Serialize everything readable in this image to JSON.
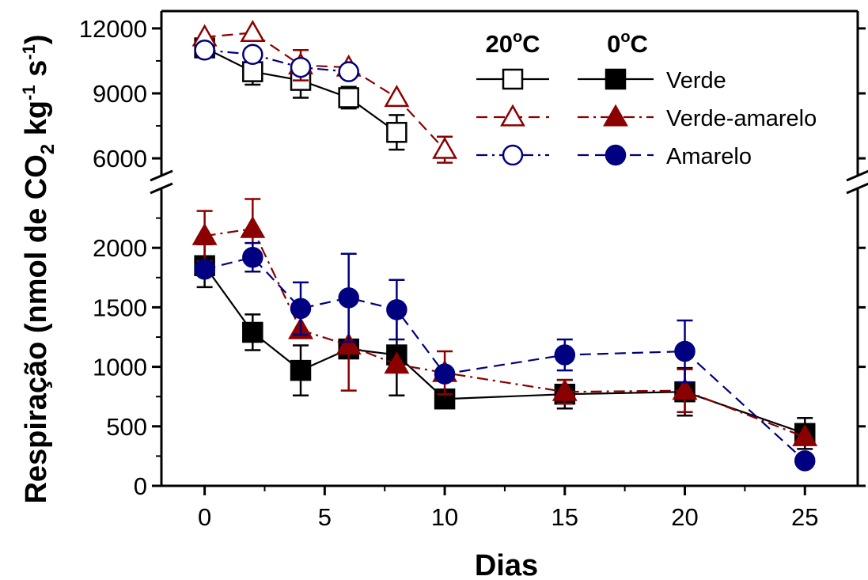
{
  "chart_data": {
    "type": "line",
    "title": "",
    "xlabel": "Dias",
    "ylabel": {
      "main": "Respiração (nmol de CO",
      "sub2": "2",
      "kg": " kg",
      "exp1": "-1",
      "s": " s",
      "exp2": "-1",
      "close": ")"
    },
    "x_ticks": [
      0,
      5,
      10,
      15,
      20,
      25
    ],
    "xlim": [
      -1.8,
      27.2
    ],
    "y_axis_broken": true,
    "y_lower": {
      "range": [
        0,
        2500
      ],
      "ticks": [
        0,
        500,
        1000,
        1500,
        2000
      ]
    },
    "y_upper": {
      "range": [
        5200,
        12800
      ],
      "ticks": [
        6000,
        9000,
        12000
      ]
    },
    "legend": {
      "position": "top-right",
      "header_20": "20°C",
      "header_0": "0°C",
      "header_20_num": "20",
      "header_0_num": "0",
      "header_deg": "o",
      "header_c": "C",
      "rows": [
        "Verde",
        "Verde-amarelo",
        "Amarelo"
      ]
    },
    "colors": {
      "verde": "#000000",
      "verde_amarelo": "#8b0000",
      "amarelo": "#000080"
    },
    "series": [
      {
        "name": "Verde",
        "temperature": "20°C",
        "marker": "square-open",
        "color": "#000000",
        "dash": "solid",
        "x": [
          0,
          2,
          4,
          6,
          8
        ],
        "y": [
          11100,
          10000,
          9600,
          8800,
          7200
        ],
        "err": [
          0,
          600,
          800,
          500,
          800
        ]
      },
      {
        "name": "Verde-amarelo",
        "temperature": "20°C",
        "marker": "triangle-open",
        "color": "#8b0000",
        "dash": "dash",
        "x": [
          0,
          2,
          4,
          6,
          8,
          10
        ],
        "y": [
          11600,
          11800,
          10300,
          10200,
          8800,
          6400
        ],
        "err": [
          0,
          0,
          700,
          0,
          0,
          600
        ]
      },
      {
        "name": "Amarelo",
        "temperature": "20°C",
        "marker": "circle-open",
        "color": "#000080",
        "dash": "dashdot",
        "x": [
          0,
          2,
          4,
          6
        ],
        "y": [
          11000,
          10800,
          10200,
          10000
        ],
        "err": [
          0,
          0,
          0,
          0
        ]
      },
      {
        "name": "Verde",
        "temperature": "0°C",
        "marker": "square-filled",
        "color": "#000000",
        "dash": "solid",
        "x": [
          0,
          2,
          4,
          6,
          8,
          10,
          15,
          20,
          25
        ],
        "y": [
          1850,
          1290,
          970,
          1150,
          1100,
          730,
          770,
          790,
          440
        ],
        "err": [
          180,
          150,
          210,
          0,
          340,
          0,
          120,
          200,
          130
        ]
      },
      {
        "name": "Verde-amarelo",
        "temperature": "0°C",
        "marker": "triangle-filled",
        "color": "#8b0000",
        "dash": "dashdot",
        "x": [
          0,
          2,
          4,
          6,
          8,
          10,
          15,
          20,
          25
        ],
        "y": [
          2100,
          2160,
          1310,
          1180,
          1020,
          950,
          790,
          800,
          410
        ],
        "err": [
          210,
          250,
          0,
          380,
          0,
          180,
          100,
          180,
          0
        ]
      },
      {
        "name": "Amarelo",
        "temperature": "0°C",
        "marker": "circle-filled",
        "color": "#000080",
        "dash": "dash",
        "x": [
          0,
          2,
          4,
          6,
          8,
          10,
          15,
          20,
          25
        ],
        "y": [
          1820,
          1920,
          1490,
          1580,
          1480,
          940,
          1100,
          1130,
          210
        ],
        "err": [
          0,
          120,
          220,
          370,
          250,
          0,
          130,
          260,
          0
        ]
      }
    ]
  }
}
